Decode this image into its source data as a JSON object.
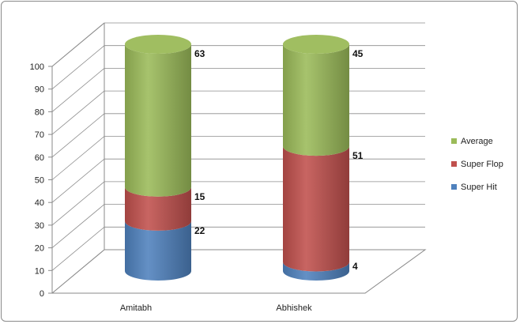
{
  "chart_data": {
    "type": "bar",
    "stacked": true,
    "style": "3d-cylinder",
    "categories": [
      "Amitabh",
      "Abhishek"
    ],
    "series": [
      {
        "name": "Super Hit",
        "values": [
          22,
          4
        ],
        "color": "#4f81bd"
      },
      {
        "name": "Super Flop",
        "values": [
          15,
          51
        ],
        "color": "#c0504d"
      },
      {
        "name": "Average",
        "values": [
          63,
          45
        ],
        "color": "#9bbb59"
      }
    ],
    "data_labels": [
      [
        "22",
        "4"
      ],
      [
        "15",
        "51"
      ],
      [
        "63",
        "45"
      ]
    ],
    "y_ticks": [
      "0",
      "10",
      "20",
      "30",
      "40",
      "50",
      "60",
      "70",
      "80",
      "90",
      "100"
    ],
    "ylim": [
      0,
      100
    ],
    "grid": true,
    "legend": {
      "position": "right",
      "entries": [
        "Average",
        "Super Flop",
        "Super Hit"
      ]
    }
  }
}
